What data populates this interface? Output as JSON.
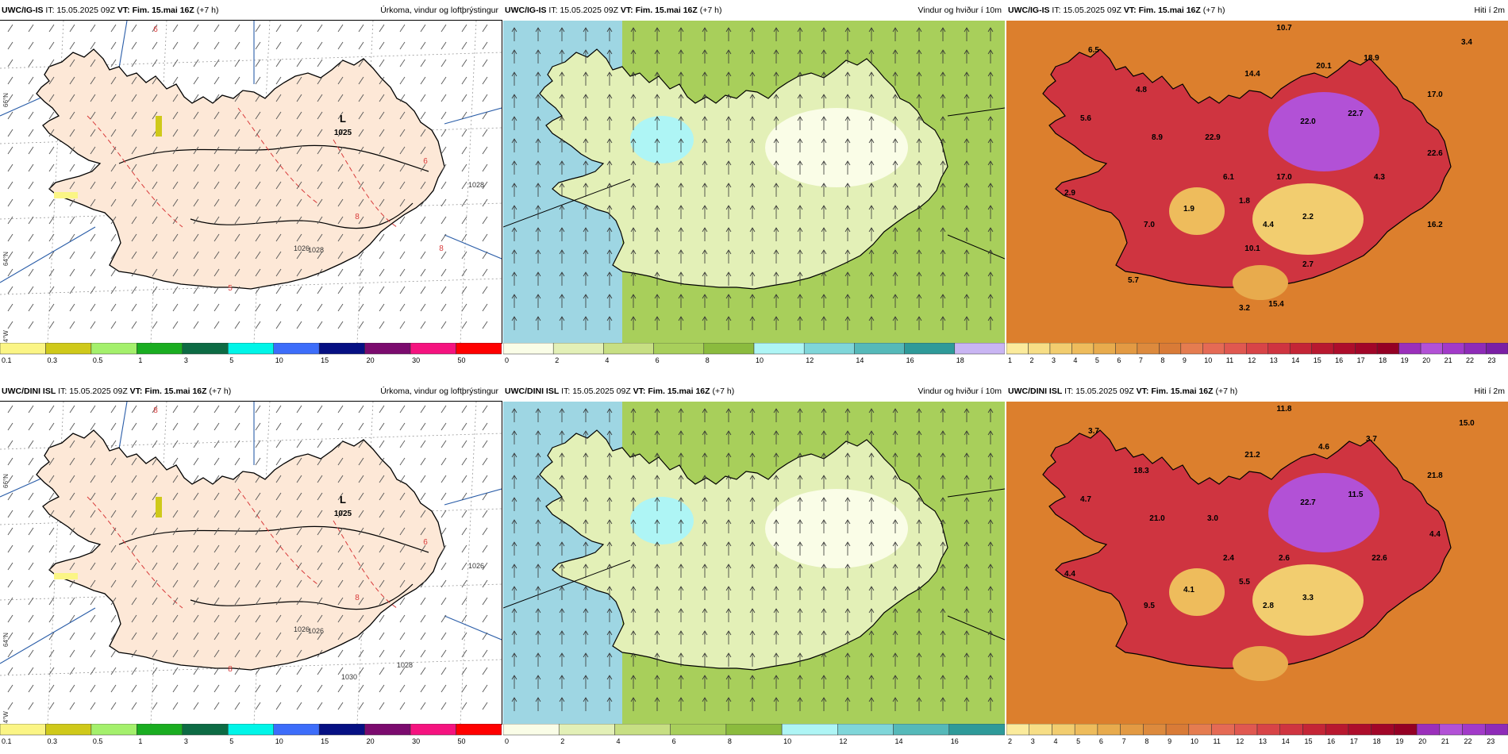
{
  "rows": [
    {
      "model": "UWC/IG-IS",
      "it_label": "IT:",
      "it_value": "15.05.2025 09Z",
      "vt_label": "VT:",
      "vt_value": "Fim. 15.mai 16Z",
      "lead": "(+7 h)",
      "panels": [
        {
          "title": "Úrkoma, vindur og loftþrýstingur",
          "low_label": "L",
          "low_value": "1025",
          "contours": [
            "1026",
            "1028",
            "1028"
          ],
          "lat_labels": [
            "66°N",
            "64°N",
            "24°W"
          ],
          "red_labels": [
            "6",
            "8",
            "6",
            "5",
            "8"
          ]
        },
        {
          "title": "Vindur og hviður í 10m"
        },
        {
          "title": "Hiti í 2m",
          "temps": [
            "6.5",
            "10.7",
            "3.4",
            "4.8",
            "14.4",
            "20.1",
            "18.9",
            "5.6",
            "22.0",
            "22.7",
            "8.9",
            "17.0",
            "4.3",
            "22.6",
            "17.0",
            "22.9",
            "6.1",
            "2.9",
            "1.9",
            "1.8",
            "4.4",
            "2.2",
            "7.0",
            "16.2",
            "10.1",
            "2.7",
            "5.7",
            "15.4",
            "3.2"
          ]
        }
      ],
      "colorbars": [
        [
          "0.1",
          "0.3",
          "0.5",
          "1",
          "3",
          "5",
          "10",
          "15",
          "20",
          "30",
          "50"
        ],
        [
          "0",
          "2",
          "4",
          "6",
          "8",
          "10",
          "12",
          "14",
          "16",
          "18"
        ],
        [
          "1",
          "2",
          "3",
          "4",
          "5",
          "6",
          "7",
          "8",
          "9",
          "10",
          "11",
          "12",
          "13",
          "14",
          "15",
          "16",
          "17",
          "18",
          "19",
          "20",
          "21",
          "22",
          "23"
        ]
      ]
    },
    {
      "model": "UWC/DINI ISL",
      "it_label": "IT:",
      "it_value": "15.05.2025 09Z",
      "vt_label": "VT:",
      "vt_value": "Fim. 15.mai 16Z",
      "lead": "(+7 h)",
      "panels": [
        {
          "title": "Úrkoma, vindur og loftþrýstingur",
          "low_label": "L",
          "low_value": "1025",
          "contours": [
            "1026",
            "1026",
            "1026",
            "1028",
            "1030"
          ],
          "lat_labels": [
            "66°N",
            "64°N",
            "24°W"
          ],
          "red_labels": [
            "8",
            "8",
            "6",
            "8"
          ]
        },
        {
          "title": "Vindur og hviður í 10m"
        },
        {
          "title": "Hiti í 2m",
          "temps": [
            "3.7",
            "11.8",
            "15.0",
            "18.3",
            "21.2",
            "4.6",
            "3.7",
            "4.7",
            "22.7",
            "11.5",
            "21.0",
            "21.8",
            "22.6",
            "4.4",
            "2.6",
            "3.0",
            "2.4",
            "4.4",
            "4.1",
            "5.5",
            "2.8",
            "3.3",
            "9.5"
          ]
        }
      ],
      "colorbars": [
        [
          "0.1",
          "0.3",
          "0.5",
          "1",
          "3",
          "5",
          "10",
          "15",
          "20",
          "30",
          "50"
        ],
        [
          "0",
          "2",
          "4",
          "6",
          "8",
          "10",
          "12",
          "14",
          "16"
        ],
        [
          "2",
          "3",
          "4",
          "5",
          "6",
          "7",
          "8",
          "9",
          "10",
          "11",
          "12",
          "13",
          "14",
          "15",
          "16",
          "17",
          "18",
          "19",
          "20",
          "21",
          "22",
          "23"
        ]
      ]
    }
  ],
  "colors": {
    "precip_scale": [
      "#fbf585",
      "#cfc91a",
      "#a4f06c",
      "#1aad21",
      "#0d6b44",
      "#00f5e8",
      "#3d6dfa",
      "#061083",
      "#7b0b6e",
      "#f5137f",
      "#ff0000"
    ],
    "wind_scale": [
      "#fafde7",
      "#e3f0b7",
      "#c7df83",
      "#a8cf5b",
      "#8bbb3e",
      "#aef5f5",
      "#7fd6d9",
      "#55b9b9",
      "#2e9a99",
      "#c9b5f3",
      "#9b83e6"
    ],
    "temp_scale": [
      "#fbeb9c",
      "#f7de86",
      "#f2cd6f",
      "#eebc5c",
      "#e8ab4d",
      "#e39a43",
      "#dd8a3d",
      "#d97b37",
      "#e57c50",
      "#e56a55",
      "#e05850",
      "#d84447",
      "#cf3440",
      "#c42536",
      "#b8182f",
      "#ad0d2b",
      "#a10628",
      "#940024",
      "#9b2fbb",
      "#b251d6",
      "#a23ac9",
      "#8e2bb8",
      "#7a1fa5"
    ],
    "land": "#fde8d7",
    "sea_wind": "#9ed6e3",
    "temp_sea": "#dc7f2d"
  }
}
